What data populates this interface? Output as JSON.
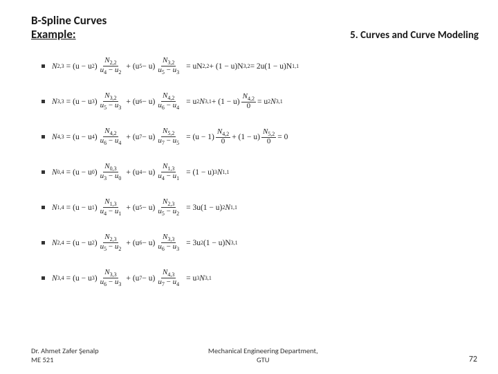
{
  "header": {
    "title_line1": "B-Spline Curves",
    "title_line2": "Example:",
    "section": "5. Curves and Curve Modeling"
  },
  "equations": [
    {
      "lhs_base": "N",
      "lhs_sub": "2,3",
      "t1_pre": "(u − u",
      "t1_presub": "2",
      "t1_post": ")",
      "t1_num": "N",
      "t1_numsub": "2,2",
      "t1_den_a": "u",
      "t1_den_asub": "4",
      "t1_den_b": "u",
      "t1_den_bsub": "2",
      "t2_pre": "(u",
      "t2_presub": "5",
      "t2_post": " − u)",
      "t2_num": "N",
      "t2_numsub": "3,2",
      "t2_den_a": "u",
      "t2_den_asub": "5",
      "t2_den_b": "u",
      "t2_den_bsub": "3",
      "rhs": "= uN",
      "rhs_sub": "2,2",
      "rhs2": " + (1 − u)N",
      "rhs2_sub": "3,2",
      "tail": " = 2u(1 − u)N",
      "tail_sub": "1,1"
    },
    {
      "lhs_base": "N",
      "lhs_sub": "3,3",
      "t1_pre": "(u − u",
      "t1_presub": "3",
      "t1_post": ")",
      "t1_num": "N",
      "t1_numsub": "3,2",
      "t1_den_a": "u",
      "t1_den_asub": "5",
      "t1_den_b": "u",
      "t1_den_bsub": "3",
      "t2_pre": "(u",
      "t2_presub": "6",
      "t2_post": " − u)",
      "t2_num": "N",
      "t2_numsub": "4,2",
      "t2_den_a": "u",
      "t2_den_asub": "6",
      "t2_den_b": "u",
      "t2_den_bsub": "4",
      "rhs": "= u",
      "rhs_sup": "2",
      "rhs_n": "N",
      "rhs_sub": "3,1",
      "rhs2": " + (1 − u)",
      "rhs2_frac_num": "N",
      "rhs2_frac_numsub": "4,2",
      "rhs2_frac_den": "0",
      "tail": " = u",
      "tail_sup": "2",
      "tail_n": "N",
      "tail_sub": "3,1"
    },
    {
      "lhs_base": "N",
      "lhs_sub": "4,3",
      "t1_pre": "(u − u",
      "t1_presub": "4",
      "t1_post": ")",
      "t1_num": "N",
      "t1_numsub": "4,2",
      "t1_den_a": "u",
      "t1_den_asub": "6",
      "t1_den_b": "u",
      "t1_den_bsub": "4",
      "t2_pre": "(u",
      "t2_presub": "7",
      "t2_post": " − u)",
      "t2_num": "N",
      "t2_numsub": "5,2",
      "t2_den_a": "u",
      "t2_den_asub": "7",
      "t2_den_b": "u",
      "t2_den_bsub": "5",
      "rhs": "= (u − 1)",
      "rhs_frac_num": "N",
      "rhs_frac_numsub": "4,2",
      "rhs_frac_den": "0",
      "rhs2": " + (1 − u)",
      "rhs2_frac_num": "N",
      "rhs2_frac_numsub": "5,2",
      "rhs2_frac_den": "0",
      "tail": " = 0"
    },
    {
      "lhs_base": "N",
      "lhs_sub": "0,4",
      "t1_pre": "(u − u",
      "t1_presub": "0",
      "t1_post": ")",
      "t1_num": "N",
      "t1_numsub": "0,3",
      "t1_den_a": "u",
      "t1_den_asub": "3",
      "t1_den_b": "u",
      "t1_den_bsub": "0",
      "t2_pre": "(u",
      "t2_presub": "4",
      "t2_post": " − u)",
      "t2_num": "N",
      "t2_numsub": "1,3",
      "t2_den_a": "u",
      "t2_den_asub": "4",
      "t2_den_b": "u",
      "t2_den_bsub": "1",
      "rhs": "= (1 − u)",
      "rhs_sup": "3",
      "rhs_n": "N",
      "rhs_sub": "1,1"
    },
    {
      "lhs_base": "N",
      "lhs_sub": "1,4",
      "t1_pre": "(u − u",
      "t1_presub": "1",
      "t1_post": ")",
      "t1_num": "N",
      "t1_numsub": "1,3",
      "t1_den_a": "u",
      "t1_den_asub": "4",
      "t1_den_b": "u",
      "t1_den_bsub": "1",
      "t2_pre": "(u",
      "t2_presub": "5",
      "t2_post": " − u)",
      "t2_num": "N",
      "t2_numsub": "2,3",
      "t2_den_a": "u",
      "t2_den_asub": "5",
      "t2_den_b": "u",
      "t2_den_bsub": "2",
      "rhs": "= 3u(1 − u)",
      "rhs_sup": "2",
      "rhs_n": "N",
      "rhs_sub": "1,1"
    },
    {
      "lhs_base": "N",
      "lhs_sub": "2,4",
      "t1_pre": "(u − u",
      "t1_presub": "2",
      "t1_post": ")",
      "t1_num": "N",
      "t1_numsub": "2,3",
      "t1_den_a": "u",
      "t1_den_asub": "5",
      "t1_den_b": "u",
      "t1_den_bsub": "2",
      "t2_pre": "(u",
      "t2_presub": "6",
      "t2_post": " − u)",
      "t2_num": "N",
      "t2_numsub": "3,3",
      "t2_den_a": "u",
      "t2_den_asub": "6",
      "t2_den_b": "u",
      "t2_den_bsub": "3",
      "rhs": "= 3u",
      "rhs_sup": "2",
      "rhs_mid": "(1 − u)N",
      "rhs_sub": "3,1"
    },
    {
      "lhs_base": "N",
      "lhs_sub": "3,4",
      "t1_pre": "(u − u",
      "t1_presub": "3",
      "t1_post": ")",
      "t1_num": "N",
      "t1_numsub": "3,3",
      "t1_den_a": "u",
      "t1_den_asub": "6",
      "t1_den_b": "u",
      "t1_den_bsub": "3",
      "t2_pre": "(u",
      "t2_presub": "7",
      "t2_post": " − u)",
      "t2_num": "N",
      "t2_numsub": "4,3",
      "t2_den_a": "u",
      "t2_den_asub": "7",
      "t2_den_b": "u",
      "t2_den_bsub": "4",
      "rhs": "= u",
      "rhs_sup": "3",
      "rhs_n": "N",
      "rhs_sub": "3,1"
    }
  ],
  "footer": {
    "author": "Dr. Ahmet Zafer Şenalp",
    "course": "ME 521",
    "dept_line1": "Mechanical Engineering Department,",
    "dept_line2": "GTU",
    "page": "72"
  },
  "colors": {
    "text": "#1a1a1a",
    "bg": "#ffffff"
  }
}
